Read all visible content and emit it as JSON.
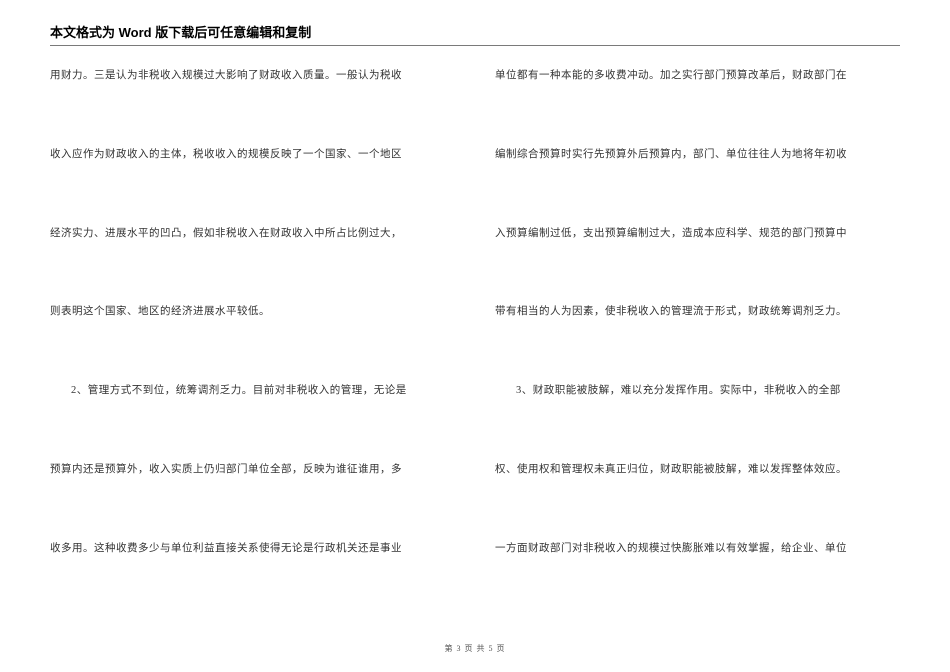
{
  "header": {
    "title": "本文格式为 Word 版下载后可任意编辑和复制"
  },
  "columns": {
    "left": [
      "用财力。三是认为非税收入规模过大影响了财政收入质量。一般认为税收",
      "收入应作为财政收入的主体，税收收入的规模反映了一个国家、一个地区",
      "经济实力、进展水平的凹凸，假如非税收入在财政收入中所占比例过大，",
      "则表明这个国家、地区的经济进展水平较低。",
      "2、管理方式不到位，统筹调剂乏力。目前对非税收入的管理，无论是",
      "预算内还是预算外，收入实质上仍归部门单位全部，反映为谁征谁用，多",
      "收多用。这种收费多少与单位利益直接关系使得无论是行政机关还是事业"
    ],
    "right": [
      "单位都有一种本能的多收费冲动。加之实行部门预算改革后，财政部门在",
      "编制综合预算时实行先预算外后预算内，部门、单位往往人为地将年初收",
      "入预算编制过低，支出预算编制过大，造成本应科学、规范的部门预算中",
      "带有相当的人为因素，使非税收入的管理流于形式，财政统筹调剂乏力。",
      "3、财政职能被肢解，难以充分发挥作用。实际中，非税收入的全部",
      "权、使用权和管理权未真正归位，财政职能被肢解，难以发挥整体效应。",
      "一方面财政部门对非税收入的规模过快膨胀难以有效掌握，给企业、单位"
    ]
  },
  "footer": {
    "text": "第 3 页 共 5 页"
  },
  "styling": {
    "page_bg": "#ffffff",
    "text_color": "#333333",
    "header_color": "#000000",
    "line_color": "#7a7a7a",
    "footer_color": "#555555",
    "body_fontsize": 10.5,
    "header_fontsize": 13,
    "footer_fontsize": 8
  }
}
